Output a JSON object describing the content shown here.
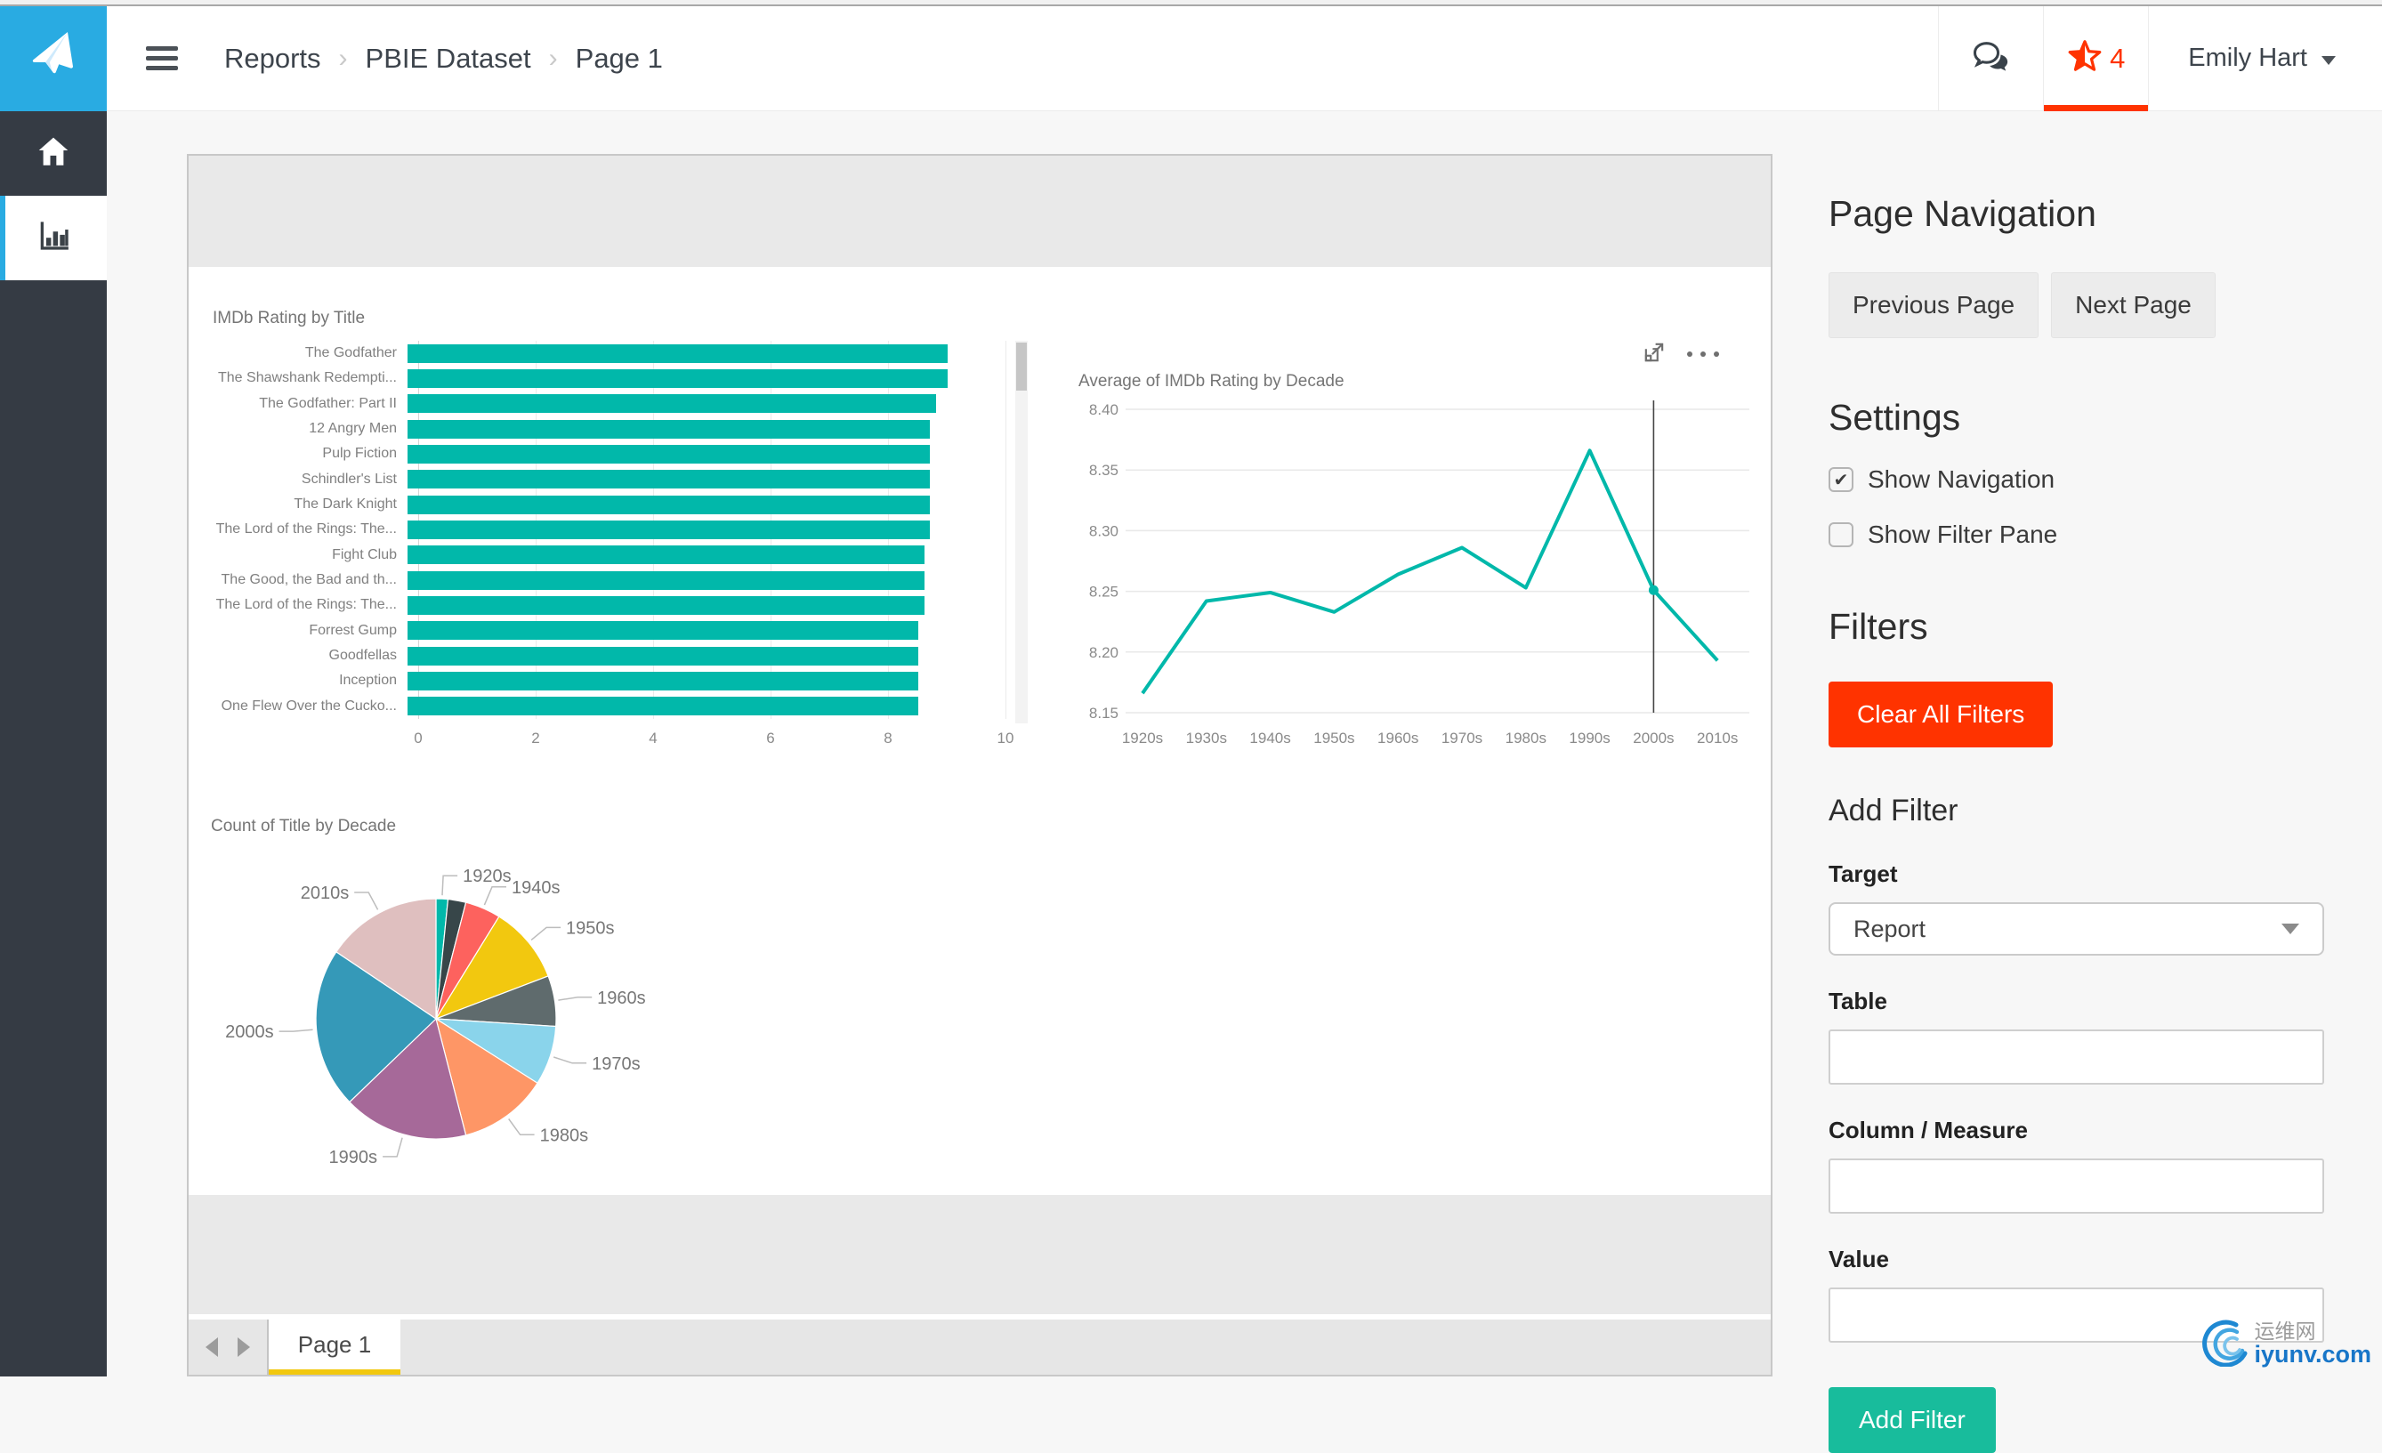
{
  "header": {
    "breadcrumb": [
      "Reports",
      "PBIE Dataset",
      "Page 1"
    ],
    "breadcrumb_separator": "›",
    "favorites_count": "4",
    "user_name": "Emily Hart"
  },
  "sidebar": {
    "items": [
      {
        "label": "home",
        "active": false
      },
      {
        "label": "reports",
        "active": true
      }
    ]
  },
  "report": {
    "page_tab_label": "Page 1"
  },
  "panel": {
    "page_navigation_title": "Page Navigation",
    "previous_button": "Previous Page",
    "next_button": "Next Page",
    "settings_title": "Settings",
    "show_navigation_label": "Show Navigation",
    "show_navigation_checked": true,
    "show_filter_pane_label": "Show Filter Pane",
    "show_filter_pane_checked": false,
    "filters_title": "Filters",
    "clear_all_filters_button": "Clear All Filters",
    "add_filter_title": "Add Filter",
    "target_label": "Target",
    "target_value": "Report",
    "table_label": "Table",
    "table_value": "",
    "column_measure_label": "Column / Measure",
    "column_measure_value": "",
    "value_label": "Value",
    "value_value": "",
    "add_filter_button": "Add Filter"
  },
  "watermark": {
    "text_cn": "运维网",
    "text_en": "iyunv.com"
  },
  "colors": {
    "accent_blue": "#29ABE2",
    "sidebar_dark": "#353b44",
    "teal": "#01B8AA",
    "red": "#FF3300",
    "green": "#18BC9C",
    "tab_yellow": "#F2C80F"
  },
  "chart_data": [
    {
      "type": "bar",
      "orientation": "horizontal",
      "title": "IMDb Rating by Title",
      "categories": [
        "The Godfather",
        "The Shawshank Redempti...",
        "The Godfather: Part II",
        "12 Angry Men",
        "Pulp Fiction",
        "Schindler's List",
        "The Dark Knight",
        "The Lord of the Rings: The...",
        "Fight Club",
        "The Good, the Bad and th...",
        "The Lord of the Rings: The...",
        "Forrest Gump",
        "Goodfellas",
        "Inception",
        "One Flew Over the Cucko..."
      ],
      "values": [
        9.2,
        9.2,
        9.0,
        8.9,
        8.9,
        8.9,
        8.9,
        8.9,
        8.8,
        8.8,
        8.8,
        8.7,
        8.7,
        8.7,
        8.7
      ],
      "xlim": [
        0,
        10
      ],
      "x_ticks": [
        0,
        2,
        4,
        6,
        8,
        10
      ],
      "grid": true,
      "scrollbar": true,
      "color": "#01B8AA"
    },
    {
      "type": "line",
      "title": "Average of IMDb Rating by Decade",
      "categories": [
        "1920s",
        "1930s",
        "1940s",
        "1950s",
        "1960s",
        "1970s",
        "1980s",
        "1990s",
        "2000s",
        "2010s"
      ],
      "values": [
        8.166,
        8.242,
        8.249,
        8.233,
        8.264,
        8.286,
        8.253,
        8.366,
        8.251,
        8.193
      ],
      "ylim": [
        8.15,
        8.4
      ],
      "y_ticks": [
        8.4,
        8.35,
        8.3,
        8.25,
        8.2,
        8.15
      ],
      "grid": true,
      "hover_index": 8,
      "hover_line_color": "#444444",
      "color": "#01B8AA"
    },
    {
      "type": "pie",
      "title": "Count of Title by Decade",
      "categories": [
        "1920s",
        "1930s",
        "1940s",
        "1950s",
        "1960s",
        "1970s",
        "1980s",
        "1990s",
        "2000s",
        "2010s"
      ],
      "values": [
        4,
        6,
        12,
        26,
        17,
        20,
        30,
        42,
        54,
        39
      ],
      "colors": [
        "#01B8AA",
        "#374649",
        "#FD625E",
        "#F2C80F",
        "#5F6B6D",
        "#8AD4EB",
        "#FE9666",
        "#A66999",
        "#3599B8",
        "#DFBFBF"
      ],
      "hidden_labels": [
        "1930s"
      ],
      "legend": "labels-with-leader-lines"
    }
  ]
}
